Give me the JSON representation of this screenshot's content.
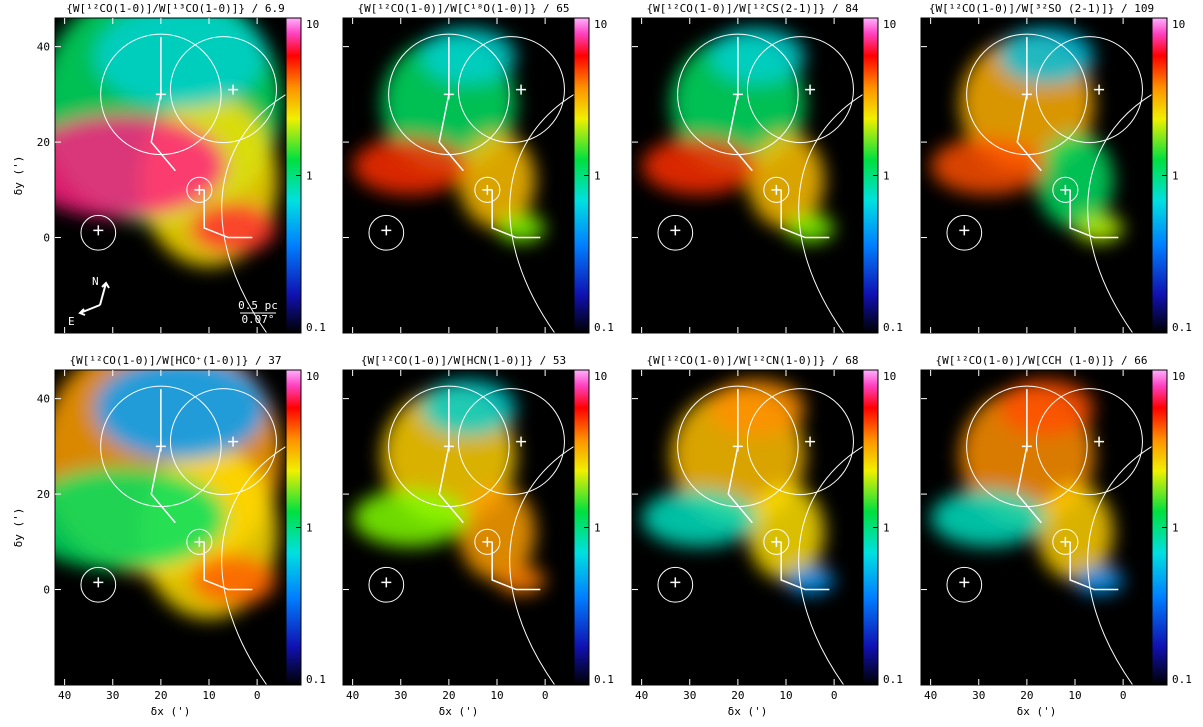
{
  "chart_data": [
    {
      "type": "heatmap",
      "title": "{W[¹²CO(1-0)]/W[¹³CO(1-0)]} / 6.9",
      "ylabel": "δy (')",
      "xlim": [
        42,
        -6
      ],
      "ylim": [
        -20,
        46
      ],
      "xticks": [
        40,
        30,
        20,
        10,
        0
      ],
      "yticks": [
        0,
        20,
        40
      ],
      "clim": [
        0.1,
        10
      ],
      "cticks": [
        0.1,
        1,
        10
      ],
      "color_scale": "log",
      "annotations": [
        "N",
        "E",
        "0.5 pc",
        "0.07°"
      ]
    },
    {
      "type": "heatmap",
      "title": "{W[¹²CO(1-0)]/W[C¹⁸O(1-0)]} / 65",
      "xlim": [
        42,
        -6
      ],
      "ylim": [
        -20,
        46
      ],
      "xticks": [
        40,
        30,
        20,
        10,
        0
      ],
      "yticks": [
        0,
        20,
        40
      ],
      "clim": [
        0.1,
        10
      ],
      "cticks": [
        0.1,
        1,
        10
      ],
      "color_scale": "log"
    },
    {
      "type": "heatmap",
      "title": "{W[¹²CO(1-0)]/W[¹²CS(2-1)]} / 84",
      "xlim": [
        42,
        -6
      ],
      "ylim": [
        -20,
        46
      ],
      "xticks": [
        40,
        30,
        20,
        10,
        0
      ],
      "yticks": [
        0,
        20,
        40
      ],
      "clim": [
        0.1,
        10
      ],
      "cticks": [
        0.1,
        1,
        10
      ],
      "color_scale": "log"
    },
    {
      "type": "heatmap",
      "title": "{W[¹²CO(1-0)]/W[³²SO (2-1)]} / 109",
      "xlim": [
        42,
        -6
      ],
      "ylim": [
        -20,
        46
      ],
      "xticks": [
        40,
        30,
        20,
        10,
        0
      ],
      "yticks": [
        0,
        20,
        40
      ],
      "clim": [
        0.1,
        10
      ],
      "cticks": [
        0.1,
        1,
        10
      ],
      "color_scale": "log"
    },
    {
      "type": "heatmap",
      "title": "{W[¹²CO(1-0)]/W[HCO⁺(1-0)]} / 37",
      "xlabel": "δx (')",
      "ylabel": "δy (')",
      "xlim": [
        42,
        -6
      ],
      "ylim": [
        -20,
        46
      ],
      "xticks": [
        40,
        30,
        20,
        10,
        0
      ],
      "yticks": [
        0,
        20,
        40
      ],
      "clim": [
        0.1,
        10
      ],
      "cticks": [
        0.1,
        1,
        10
      ],
      "color_scale": "log"
    },
    {
      "type": "heatmap",
      "title": "{W[¹²CO(1-0)]/W[HCN(1-0)]} / 53",
      "xlabel": "δx (')",
      "xlim": [
        42,
        -6
      ],
      "ylim": [
        -20,
        46
      ],
      "xticks": [
        40,
        30,
        20,
        10,
        0
      ],
      "yticks": [
        0,
        20,
        40
      ],
      "clim": [
        0.1,
        10
      ],
      "cticks": [
        0.1,
        1,
        10
      ],
      "color_scale": "log"
    },
    {
      "type": "heatmap",
      "title": "{W[¹²CO(1-0)]/W[¹²CN(1-0)]} / 68",
      "xlabel": "δx (')",
      "xlim": [
        42,
        -6
      ],
      "ylim": [
        -20,
        46
      ],
      "xticks": [
        40,
        30,
        20,
        10,
        0
      ],
      "yticks": [
        0,
        20,
        40
      ],
      "clim": [
        0.1,
        10
      ],
      "cticks": [
        0.1,
        1,
        10
      ],
      "color_scale": "log"
    },
    {
      "type": "heatmap",
      "title": "{W[¹²CO(1-0)]/W[CCH (1-0)]} / 66",
      "xlabel": "δx (')",
      "xlim": [
        42,
        -6
      ],
      "ylim": [
        -20,
        46
      ],
      "xticks": [
        40,
        30,
        20,
        10,
        0
      ],
      "yticks": [
        0,
        20,
        40
      ],
      "clim": [
        0.1,
        10
      ],
      "cticks": [
        0.1,
        1,
        10
      ],
      "color_scale": "log"
    }
  ]
}
